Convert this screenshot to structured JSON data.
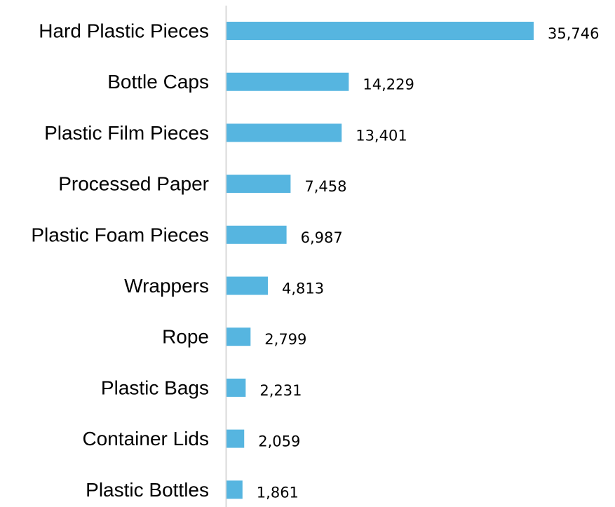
{
  "chart_data": {
    "type": "bar",
    "orientation": "horizontal",
    "title": "",
    "xlabel": "",
    "ylabel": "",
    "categories": [
      "Hard Plastic Pieces",
      "Bottle Caps",
      "Plastic Film Pieces",
      "Processed Paper",
      "Plastic Foam Pieces",
      "Wrappers",
      "Rope",
      "Plastic Bags",
      "Container Lids",
      "Plastic Bottles"
    ],
    "values": [
      35746,
      14229,
      13401,
      7458,
      6987,
      4813,
      2799,
      2231,
      2059,
      1861
    ],
    "value_labels": [
      "35,746",
      "14,229",
      "13,401",
      "7,458",
      "6,987",
      "4,813",
      "2,799",
      "2,231",
      "2,059",
      "1,861"
    ],
    "xlim": [
      0,
      35746
    ],
    "grid": false,
    "legend": "none",
    "bar_color": "#56B5E0",
    "axis_color": "#D9D9D9",
    "text_color": "#000000"
  }
}
